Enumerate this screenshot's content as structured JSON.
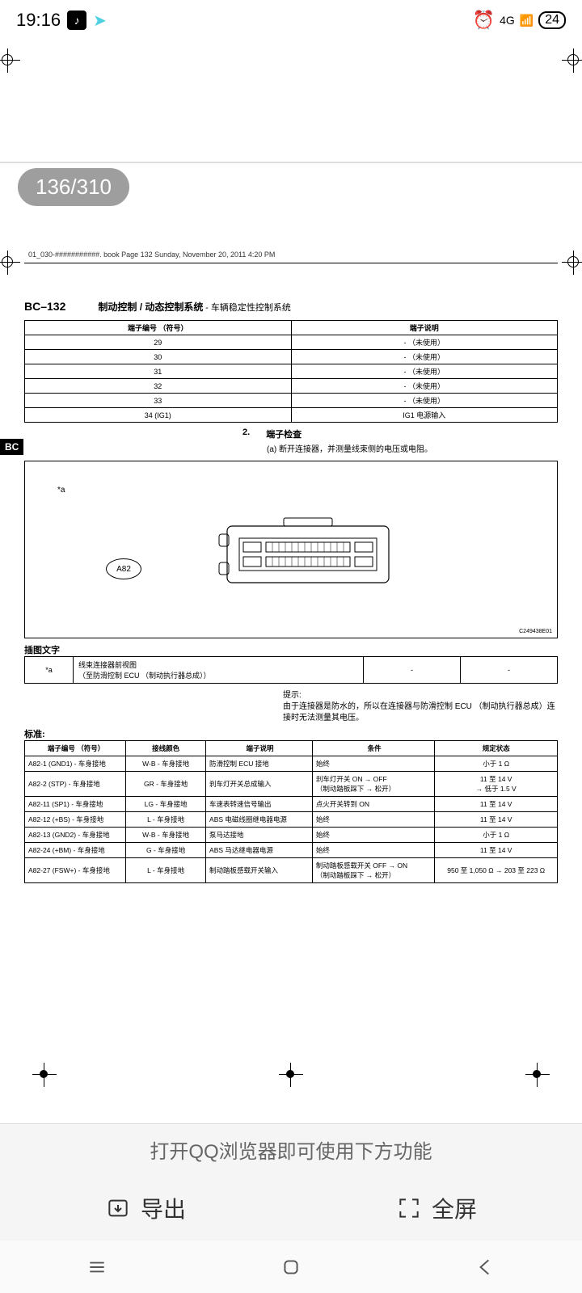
{
  "status": {
    "time": "19:16",
    "network": "4G",
    "battery": "24"
  },
  "pageBadge": "136/310",
  "bookMeta": "01_030-###########. book  Page 132  Sunday, November 20, 2011  4:20 PM",
  "pageCode": "BC–132",
  "docTitle": "制动控制 / 动态控制系统",
  "docSubtitle": " - 车辆稳定性控制系统",
  "bcTag": "BC",
  "table1": {
    "headers": [
      "端子编号 （符号）",
      "端子说明"
    ],
    "rows": [
      [
        "29",
        "- （未使用）"
      ],
      [
        "30",
        "- （未使用）"
      ],
      [
        "31",
        "- （未使用）"
      ],
      [
        "32",
        "- （未使用）"
      ],
      [
        "33",
        "- （未使用）"
      ],
      [
        "34 (IG1)",
        "IG1 电源输入"
      ]
    ]
  },
  "section": {
    "num": "2.",
    "title": "端子检查",
    "sub": "(a)  断开连接器，并测量线束侧的电压或电阻。"
  },
  "diagram": {
    "labelA": "*a",
    "oval": "A82",
    "id": "C249438E01"
  },
  "captionTitle": "插图文字",
  "caption": {
    "c1": "*a",
    "c2a": "线束连接器前视图",
    "c2b": "（至防滑控制 ECU （制动执行器总成））",
    "c3": "-",
    "c4": "-"
  },
  "hint": {
    "label": "提示:",
    "text": "由于连接器是防水的，所以在连接器与防滑控制 ECU （制动执行器总成）连接时无法测量其电压。"
  },
  "stdTitle": "标准:",
  "stdTable": {
    "headers": [
      "端子编号 （符号）",
      "接线颜色",
      "端子说明",
      "条件",
      "规定状态"
    ],
    "rows": [
      [
        "A82-1 (GND1) - 车身接地",
        "W-B - 车身接地",
        "防滑控制 ECU 接地",
        "始终",
        "小于 1 Ω"
      ],
      [
        "A82-2 (STP) - 车身接地",
        "GR - 车身接地",
        "刹车灯开关总成输入",
        "刹车灯开关 ON → OFF\n（制动踏板踩下 → 松开）",
        "11 至 14 V\n→ 低于 1.5 V"
      ],
      [
        "A82-11 (SP1) - 车身接地",
        "LG - 车身接地",
        "车速表转速信号输出",
        "点火开关转到 ON",
        "11 至 14 V"
      ],
      [
        "A82-12 (+BS) - 车身接地",
        "L - 车身接地",
        "ABS 电磁线圈继电器电源",
        "始终",
        "11 至 14 V"
      ],
      [
        "A82-13 (GND2) - 车身接地",
        "W-B - 车身接地",
        "泵马达接地",
        "始终",
        "小于 1 Ω"
      ],
      [
        "A82-24 (+BM) - 车身接地",
        "G - 车身接地",
        "ABS 马达继电器电源",
        "始终",
        "11 至 14 V"
      ],
      [
        "A82-27 (FSW+) - 车身接地",
        "L - 车身接地",
        "制动踏板感载开关输入",
        "制动踏板感载开关 OFF → ON\n（制动踏板踩下 → 松开）",
        "950 至 1,050 Ω → 203 至 223 Ω"
      ]
    ]
  },
  "bottomPanel": {
    "title": "打开QQ浏览器即可使用下方功能",
    "export": "导出",
    "fullscreen": "全屏"
  }
}
